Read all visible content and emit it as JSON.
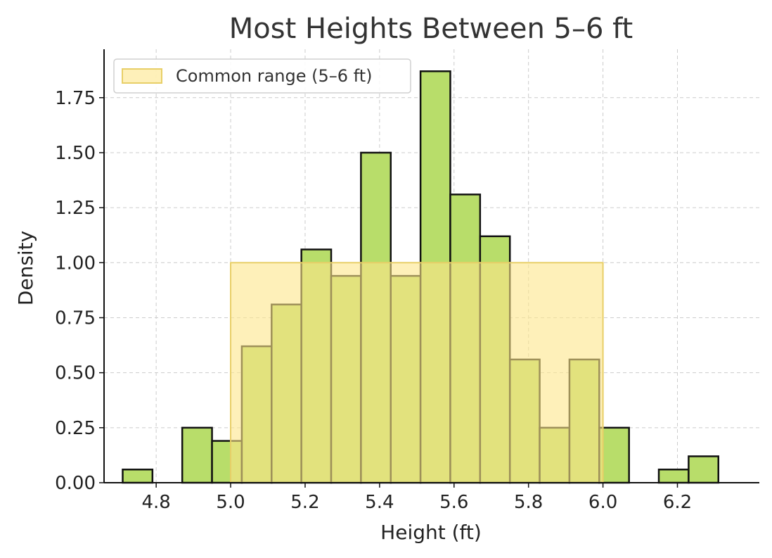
{
  "chart_data": {
    "type": "bar",
    "title": "Most Heights Between 5–6 ft",
    "xlabel": "Height (ft)",
    "ylabel": "Density",
    "xlim": [
      4.66,
      6.42
    ],
    "ylim": [
      0,
      1.97
    ],
    "xticks": [
      4.8,
      5.0,
      5.2,
      5.4,
      5.6,
      5.8,
      6.0,
      6.2
    ],
    "xtick_labels": [
      "4.8",
      "5.0",
      "5.2",
      "5.4",
      "5.6",
      "5.8",
      "6.0",
      "6.2"
    ],
    "yticks": [
      0,
      0.25,
      0.5,
      0.75,
      1.0,
      1.25,
      1.5,
      1.75
    ],
    "ytick_labels": [
      "0.00",
      "0.25",
      "0.50",
      "0.75",
      "1.00",
      "1.25",
      "1.50",
      "1.75"
    ],
    "grid": true,
    "bar_color": "#b8dd6a",
    "bins": [
      {
        "left": 4.71,
        "right": 4.79,
        "density": 0.06
      },
      {
        "left": 4.79,
        "right": 4.87,
        "density": 0.0
      },
      {
        "left": 4.87,
        "right": 4.95,
        "density": 0.25
      },
      {
        "left": 4.95,
        "right": 5.03,
        "density": 0.19
      },
      {
        "left": 5.03,
        "right": 5.11,
        "density": 0.62
      },
      {
        "left": 5.11,
        "right": 5.19,
        "density": 0.81
      },
      {
        "left": 5.19,
        "right": 5.27,
        "density": 1.06
      },
      {
        "left": 5.27,
        "right": 5.35,
        "density": 0.94
      },
      {
        "left": 5.35,
        "right": 5.43,
        "density": 1.5
      },
      {
        "left": 5.43,
        "right": 5.51,
        "density": 0.94
      },
      {
        "left": 5.51,
        "right": 5.59,
        "density": 1.87
      },
      {
        "left": 5.59,
        "right": 5.67,
        "density": 1.31
      },
      {
        "left": 5.67,
        "right": 5.75,
        "density": 1.12
      },
      {
        "left": 5.75,
        "right": 5.83,
        "density": 0.56
      },
      {
        "left": 5.83,
        "right": 5.91,
        "density": 0.25
      },
      {
        "left": 5.91,
        "right": 5.99,
        "density": 0.56
      },
      {
        "left": 5.99,
        "right": 6.07,
        "density": 0.25
      },
      {
        "left": 6.07,
        "right": 6.15,
        "density": 0.0
      },
      {
        "left": 6.15,
        "right": 6.23,
        "density": 0.06
      },
      {
        "left": 6.23,
        "right": 6.31,
        "density": 0.12
      }
    ],
    "highlight": {
      "label": "Common range (5–6 ft)",
      "x0": 5.0,
      "x1": 6.0,
      "y": 1.0,
      "color": "#fde68a"
    },
    "legend_position": "top-left"
  }
}
